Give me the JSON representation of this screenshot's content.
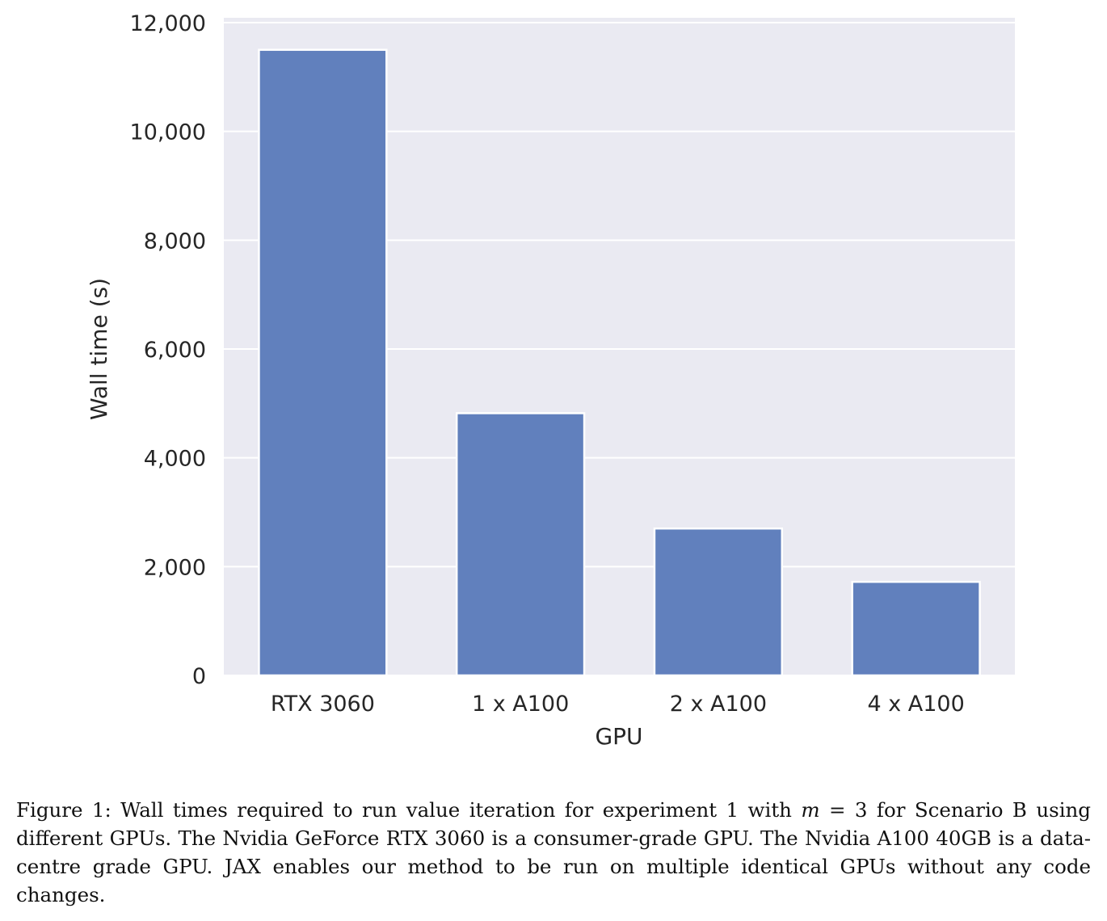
{
  "chart_data": {
    "type": "bar",
    "title": "",
    "xlabel": "GPU",
    "ylabel": "Wall time (s)",
    "categories": [
      "RTX 3060",
      "1 x A100",
      "2 x A100",
      "4 x A100"
    ],
    "values": [
      11500,
      4820,
      2700,
      1720
    ],
    "ylim": [
      0,
      12000
    ],
    "yticks": [
      0,
      2000,
      4000,
      6000,
      8000,
      10000,
      12000
    ],
    "ytick_labels": [
      "0",
      "2,000",
      "4,000",
      "6,000",
      "8,000",
      "10,000",
      "12,000"
    ],
    "grid": true,
    "bar_color": "#6180bd",
    "background_color": "#eaeaf2"
  },
  "caption": {
    "prefix": "Figure 1: Wall times required to run value iteration for experiment 1 with ",
    "math_var": "m",
    "math_rest": " = 3",
    "suffix": " for Scenario B using different GPUs. The Nvidia GeForce RTX 3060 is a consumer-grade GPU. The Nvidia A100 40GB is a data-centre grade GPU. JAX enables our method to be run on multiple identical GPUs without any code changes."
  }
}
